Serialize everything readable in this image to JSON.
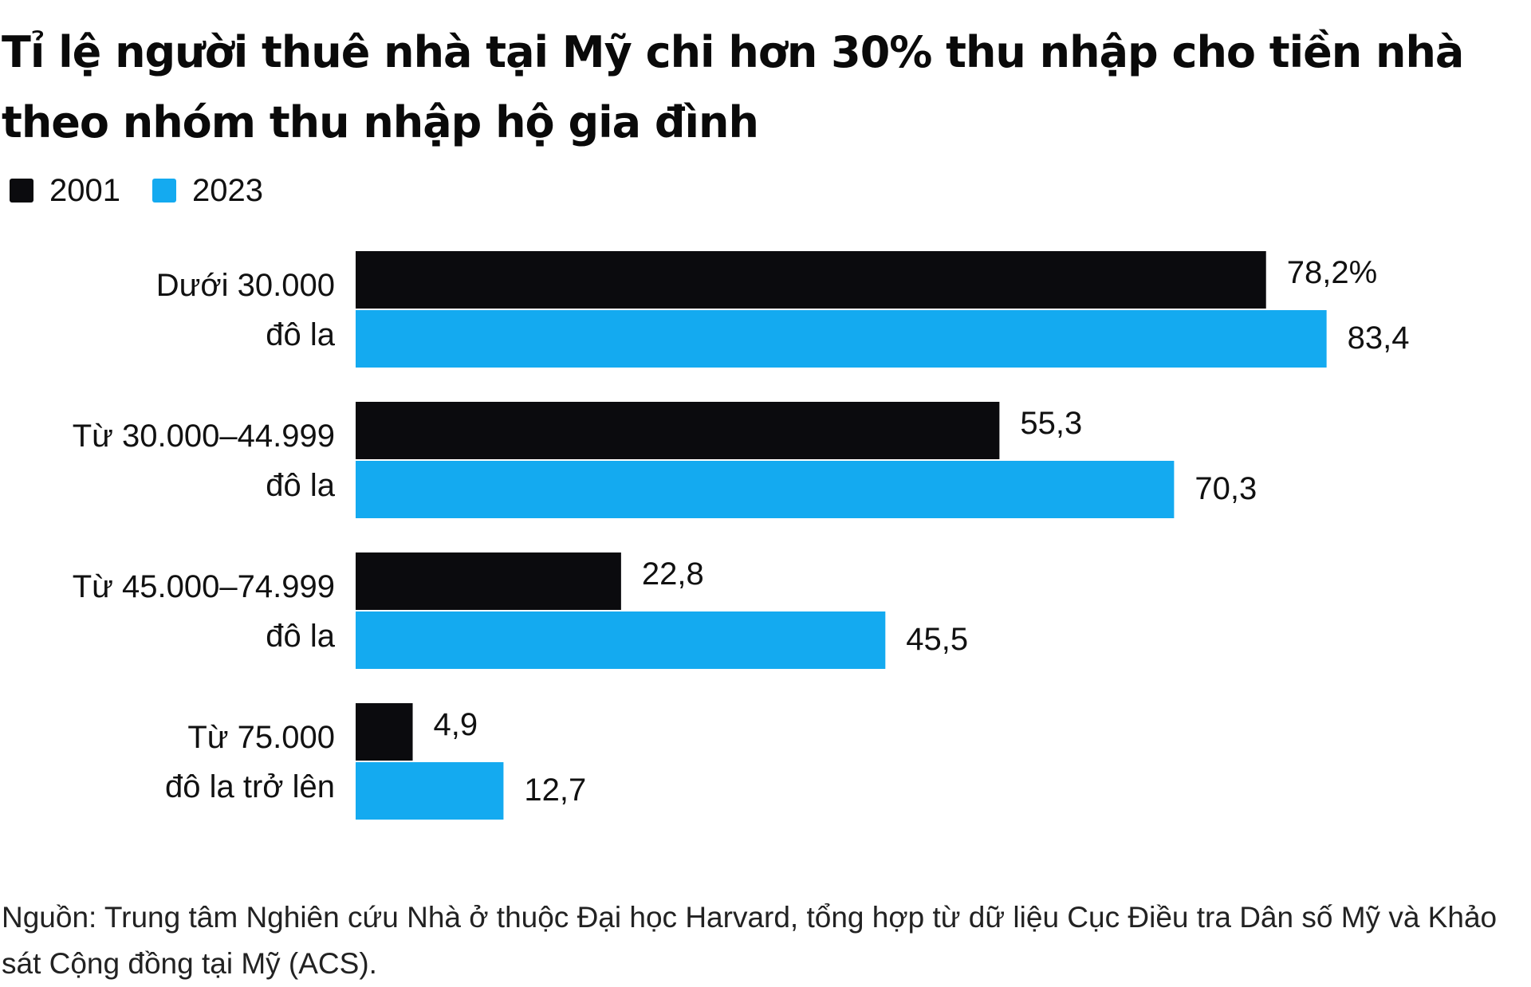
{
  "title": "Tỉ lệ người thuê nhà tại Mỹ chi hơn 30% thu nhập cho tiền nhà theo nhóm thu nhập hộ gia đình",
  "legend": [
    {
      "label": "2001",
      "color": "#0b0b0e"
    },
    {
      "label": "2023",
      "color": "#14aaf0"
    }
  ],
  "source": "Nguồn: Trung tâm Nghiên cứu Nhà ở thuộc Đại học Harvard, tổng hợp từ dữ liệu Cục Điều tra Dân số Mỹ và Khảo sát Cộng đồng tại Mỹ (ACS).",
  "chart_data": {
    "type": "bar",
    "orientation": "horizontal",
    "title": "Tỉ lệ người thuê nhà tại Mỹ chi hơn 30% thu nhập cho tiền nhà theo nhóm thu nhập hộ gia đình",
    "categories": [
      [
        "Dưới 30.000",
        "đô la"
      ],
      [
        "Từ 30.000–44.999",
        "đô la"
      ],
      [
        "Từ 45.000–74.999",
        "đô la"
      ],
      [
        "Từ 75.000",
        "đô la trở lên"
      ]
    ],
    "series": [
      {
        "name": "2001",
        "color": "#0b0b0e",
        "values": [
          78.2,
          55.3,
          22.8,
          4.9
        ],
        "labels": [
          "78,2%",
          "55,3",
          "22,8",
          "4,9"
        ]
      },
      {
        "name": "2023",
        "color": "#14aaf0",
        "values": [
          83.4,
          70.3,
          45.5,
          12.7
        ],
        "labels": [
          "83,4",
          "70,3",
          "45,5",
          "12,7"
        ]
      }
    ],
    "xlim": [
      0,
      100
    ],
    "grid": false,
    "legend_position": "top-left"
  }
}
